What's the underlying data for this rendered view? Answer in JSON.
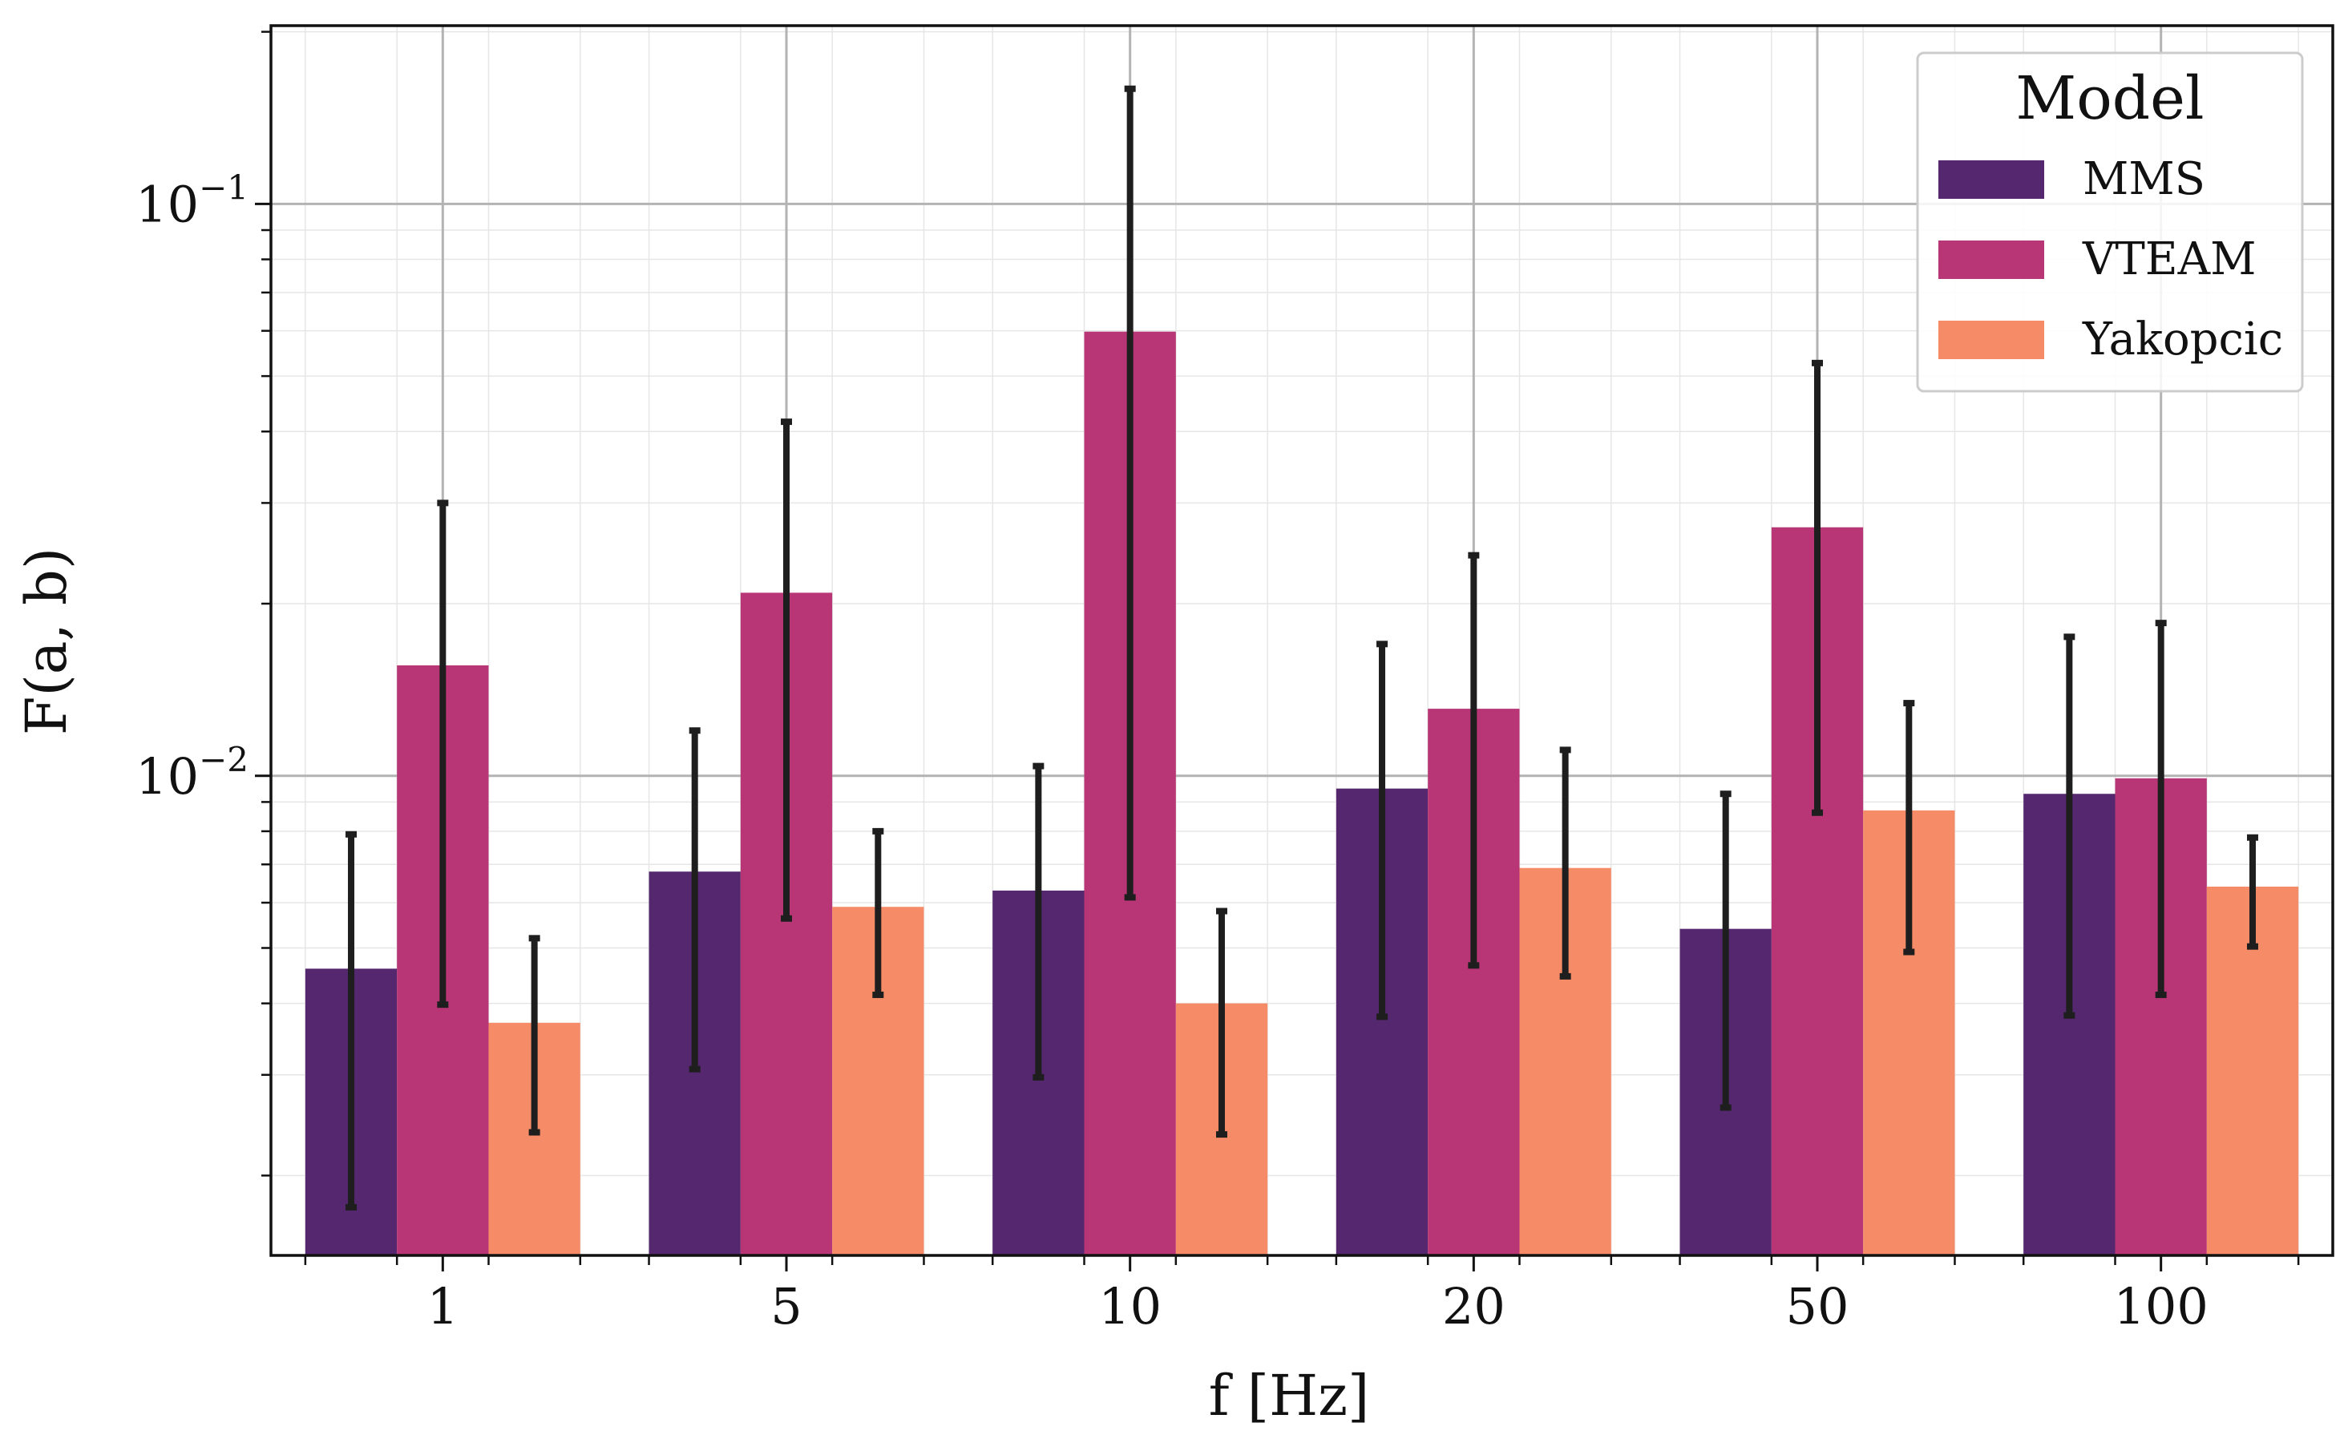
{
  "chart_data": {
    "type": "bar",
    "title": "",
    "xlabel": "f [Hz]",
    "ylabel": "F(a, b)",
    "yscale": "log",
    "ylim": [
      0.00145,
      0.205
    ],
    "grid": true,
    "categories": [
      "1",
      "5",
      "10",
      "20",
      "50",
      "100"
    ],
    "yticks": [
      {
        "value": 0.01,
        "base": "10",
        "exp": "−2"
      },
      {
        "value": 0.1,
        "base": "10",
        "exp": "−1"
      }
    ],
    "legend": {
      "title": "Model",
      "placement": "top-right"
    },
    "series": [
      {
        "name": "MMS",
        "color": "#54276f",
        "values": [
          0.0046,
          0.0068,
          0.0063,
          0.0095,
          0.0054,
          0.0093
        ],
        "err_low": [
          0.00176,
          0.00307,
          0.00297,
          0.00379,
          0.00263,
          0.00381
        ],
        "err_high": [
          0.0079,
          0.012,
          0.0104,
          0.017,
          0.0093,
          0.0175
        ]
      },
      {
        "name": "VTEAM",
        "color": "#b83676",
        "values": [
          0.0156,
          0.0209,
          0.0598,
          0.0131,
          0.0272,
          0.0099
        ],
        "err_low": [
          0.00398,
          0.00563,
          0.00613,
          0.00466,
          0.00862,
          0.00414
        ],
        "err_high": [
          0.03,
          0.0416,
          0.159,
          0.0243,
          0.0527,
          0.0185
        ]
      },
      {
        "name": "Yakopcic",
        "color": "#f58b67",
        "values": [
          0.0037,
          0.0059,
          0.004,
          0.0069,
          0.0087,
          0.0064
        ],
        "err_low": [
          0.00238,
          0.00414,
          0.00236,
          0.00446,
          0.00492,
          0.00503
        ],
        "err_high": [
          0.0052,
          0.008,
          0.0058,
          0.0111,
          0.0134,
          0.0078
        ]
      }
    ]
  }
}
